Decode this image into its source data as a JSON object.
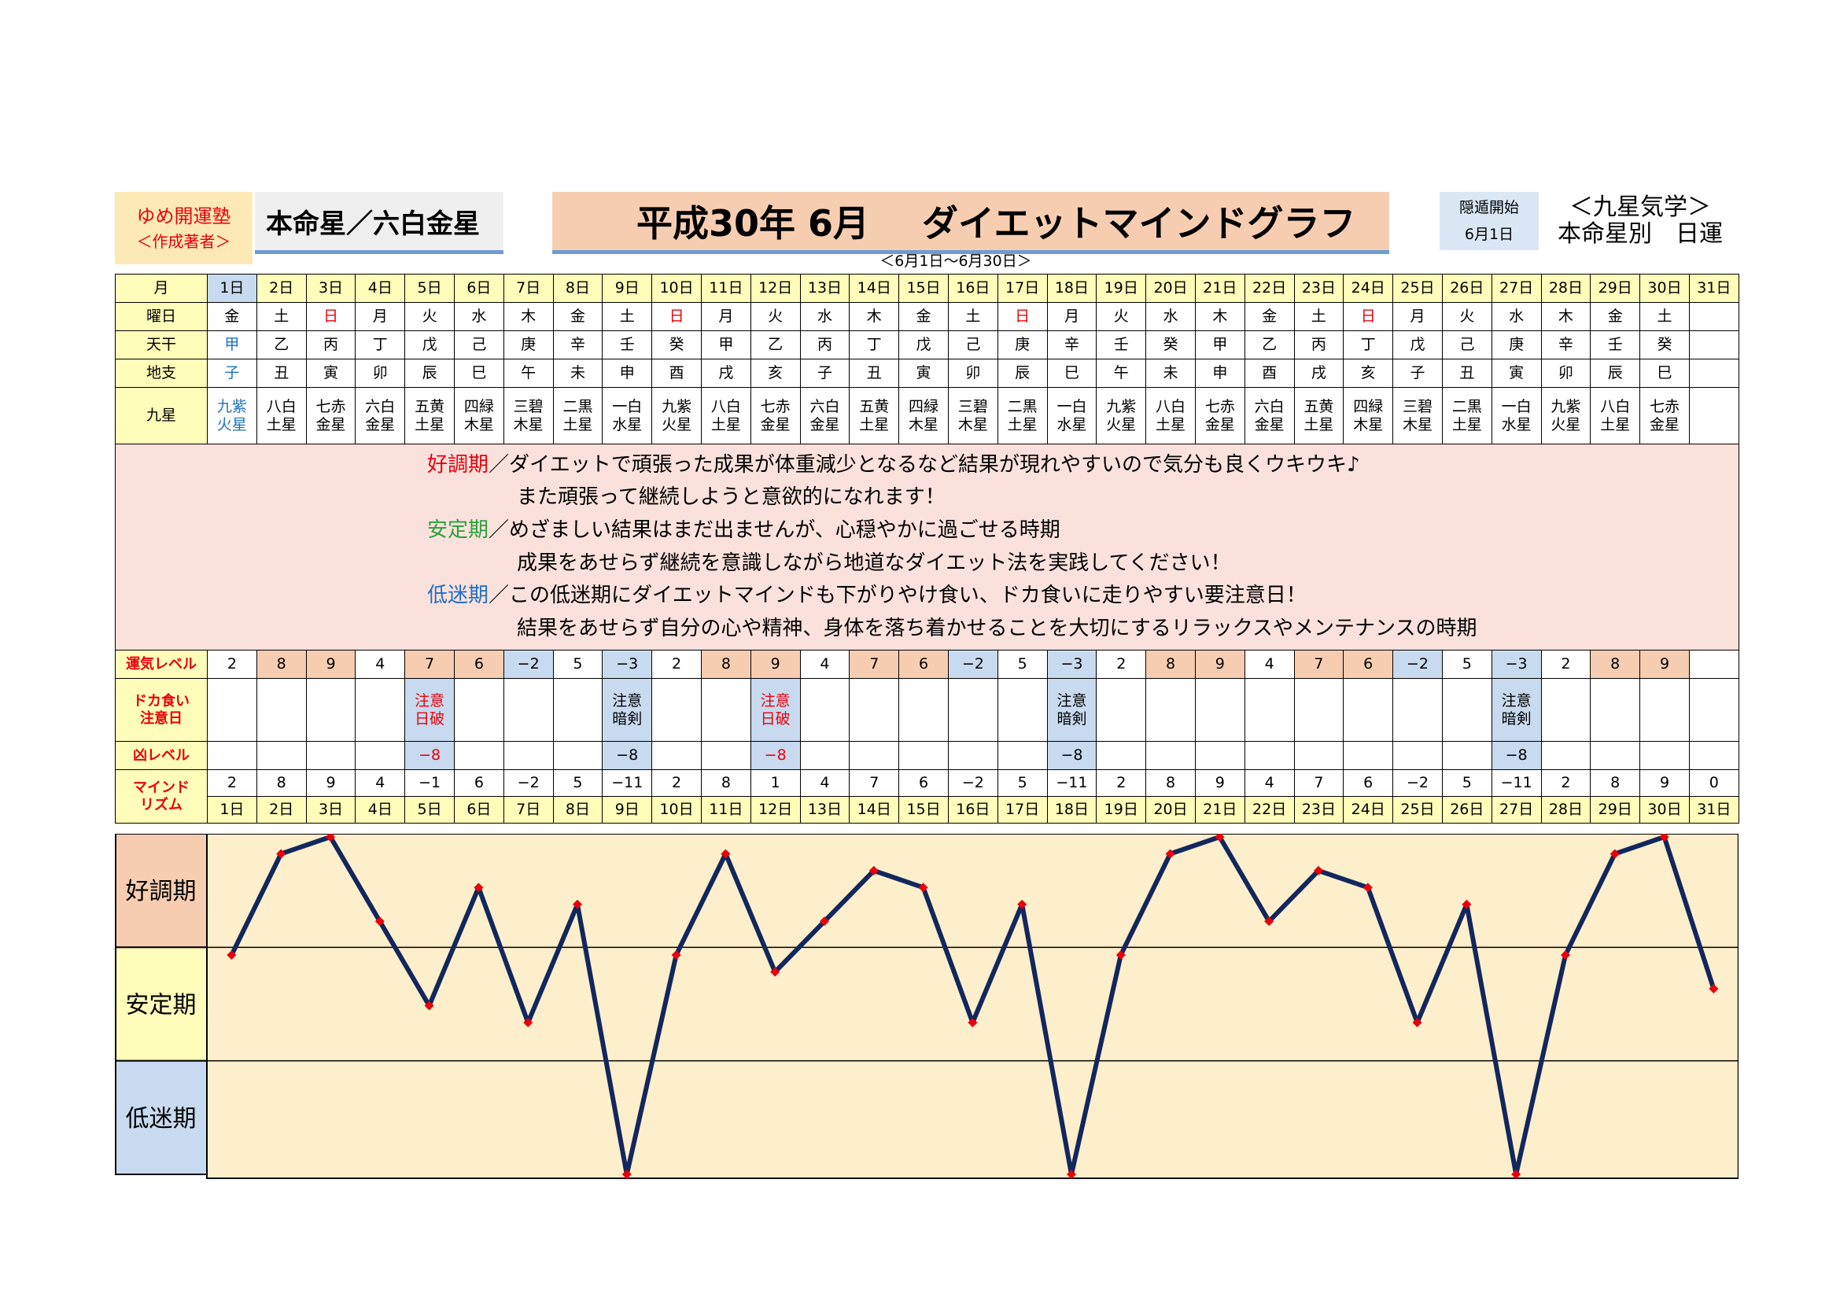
{
  "header": {
    "author_name": "ゆめ開運塾",
    "author_role": "＜作成著者＞",
    "honmei": "本命星／六白金星",
    "title_year": "平成30年 6月",
    "title_main": "ダイエットマインドグラフ",
    "period": "＜6月1日～6月30日＞",
    "inton_label": "隠遁開始",
    "inton_date": "6月1日",
    "kyusei_title": "＜九星気学＞",
    "kyusei_sub": "本命星別　日運"
  },
  "labels": {
    "month": "月",
    "weekday": "曜日",
    "tenkan": "天干",
    "chishi": "地支",
    "kyusei": "九星",
    "unki": "運気レベル",
    "doka_line1": "ドカ食い",
    "doka_line2": "注意日",
    "kyo": "凶レベル",
    "mind_line1": "マインド",
    "mind_line2": "リズム"
  },
  "days": [
    "1日",
    "2日",
    "3日",
    "4日",
    "5日",
    "6日",
    "7日",
    "8日",
    "9日",
    "10日",
    "11日",
    "12日",
    "13日",
    "14日",
    "15日",
    "16日",
    "17日",
    "18日",
    "19日",
    "20日",
    "21日",
    "22日",
    "23日",
    "24日",
    "25日",
    "26日",
    "27日",
    "28日",
    "29日",
    "30日",
    "31日"
  ],
  "weekdays": [
    "金",
    "土",
    "日",
    "月",
    "火",
    "水",
    "木",
    "金",
    "土",
    "日",
    "月",
    "火",
    "水",
    "木",
    "金",
    "土",
    "日",
    "月",
    "火",
    "水",
    "木",
    "金",
    "土",
    "日",
    "月",
    "火",
    "水",
    "木",
    "金",
    "土",
    ""
  ],
  "tenkan": [
    "甲",
    "乙",
    "丙",
    "丁",
    "戊",
    "己",
    "庚",
    "辛",
    "壬",
    "癸",
    "甲",
    "乙",
    "丙",
    "丁",
    "戊",
    "己",
    "庚",
    "辛",
    "壬",
    "癸",
    "甲",
    "乙",
    "丙",
    "丁",
    "戊",
    "己",
    "庚",
    "辛",
    "壬",
    "癸",
    ""
  ],
  "chishi": [
    "子",
    "丑",
    "寅",
    "卯",
    "辰",
    "巳",
    "午",
    "未",
    "申",
    "酉",
    "戌",
    "亥",
    "子",
    "丑",
    "寅",
    "卯",
    "辰",
    "巳",
    "午",
    "未",
    "申",
    "酉",
    "戌",
    "亥",
    "子",
    "丑",
    "寅",
    "卯",
    "辰",
    "巳",
    ""
  ],
  "kyusei_top": [
    "九紫",
    "八白",
    "七赤",
    "六白",
    "五黄",
    "四緑",
    "三碧",
    "二黒",
    "一白",
    "九紫",
    "八白",
    "七赤",
    "六白",
    "五黄",
    "四緑",
    "三碧",
    "二黒",
    "一白",
    "九紫",
    "八白",
    "七赤",
    "六白",
    "五黄",
    "四緑",
    "三碧",
    "二黒",
    "一白",
    "九紫",
    "八白",
    "七赤",
    ""
  ],
  "kyusei_bottom": [
    "火星",
    "土星",
    "金星",
    "金星",
    "土星",
    "木星",
    "木星",
    "土星",
    "水星",
    "火星",
    "土星",
    "金星",
    "金星",
    "土星",
    "木星",
    "木星",
    "土星",
    "水星",
    "火星",
    "土星",
    "金星",
    "金星",
    "土星",
    "木星",
    "木星",
    "土星",
    "水星",
    "火星",
    "土星",
    "金星",
    ""
  ],
  "description": {
    "good_label": "好調期",
    "good_text1": "／ダイエットで頑張った成果が体重減少となるなど結果が現れやすいので気分も良くウキウキ♪",
    "good_text2": "また頑張って継続しようと意欲的になれます！",
    "stable_label": "安定期",
    "stable_text1": "／めざましい結果はまだ出ませんが、心穏やかに過ごせる時期",
    "stable_text2": "成果をあせらず継続を意識しながら地道なダイエット法を実践してください！",
    "low_label": "低迷期",
    "low_text1": "／この低迷期にダイエットマインドも下がりやけ食い、ドカ食いに走りやすい要注意日！",
    "low_text2": "結果をあせらず自分の心や精神、身体を落ち着かせることを大切にするリラックスやメンテナンスの時期"
  },
  "unki": [
    "2",
    "8",
    "9",
    "4",
    "7",
    "6",
    "−2",
    "5",
    "−3",
    "2",
    "8",
    "9",
    "4",
    "7",
    "6",
    "−2",
    "5",
    "−3",
    "2",
    "8",
    "9",
    "4",
    "7",
    "6",
    "−2",
    "5",
    "−3",
    "2",
    "8",
    "9",
    ""
  ],
  "doka": [
    {
      "day": 5,
      "line1": "注意",
      "line2": "日破",
      "color": "red"
    },
    {
      "day": 9,
      "line1": "注意",
      "line2": "暗剣",
      "color": "black"
    },
    {
      "day": 12,
      "line1": "注意",
      "line2": "日破",
      "color": "red"
    },
    {
      "day": 18,
      "line1": "注意",
      "line2": "暗剣",
      "color": "black"
    },
    {
      "day": 27,
      "line1": "注意",
      "line2": "暗剣",
      "color": "black"
    }
  ],
  "kyo": [
    {
      "day": 5,
      "value": "−8",
      "color": "red"
    },
    {
      "day": 9,
      "value": "−8",
      "color": "black"
    },
    {
      "day": 12,
      "value": "−8",
      "color": "red"
    },
    {
      "day": 18,
      "value": "−8",
      "color": "black"
    },
    {
      "day": 27,
      "value": "−8",
      "color": "black"
    }
  ],
  "mind_labels": [
    "2",
    "8",
    "9",
    "4",
    "−1",
    "6",
    "−2",
    "5",
    "−11",
    "2",
    "8",
    "1",
    "4",
    "7",
    "6",
    "−2",
    "5",
    "−11",
    "2",
    "8",
    "9",
    "4",
    "7",
    "6",
    "−2",
    "5",
    "−11",
    "2",
    "8",
    "9",
    "0"
  ],
  "colors": {
    "good": "#f7cdb1",
    "bad": "#c8daef",
    "yellow": "#fffdb9",
    "chart_bg": "#fdefcb",
    "line": "#12275e",
    "marker": "#e8000b"
  },
  "chart_data": {
    "type": "line",
    "categories": [
      "1日",
      "2日",
      "3日",
      "4日",
      "5日",
      "6日",
      "7日",
      "8日",
      "9日",
      "10日",
      "11日",
      "12日",
      "13日",
      "14日",
      "15日",
      "16日",
      "17日",
      "18日",
      "19日",
      "20日",
      "21日",
      "22日",
      "23日",
      "24日",
      "25日",
      "26日",
      "27日",
      "28日",
      "29日",
      "30日",
      "31日"
    ],
    "series": [
      {
        "values": [
          2,
          8,
          9,
          4,
          -1,
          6,
          -2,
          5,
          -11,
          2,
          8,
          1,
          4,
          7,
          6,
          -2,
          5,
          -11,
          2,
          8,
          9,
          4,
          7,
          6,
          -2,
          5,
          -11,
          2,
          8,
          9,
          0
        ]
      }
    ],
    "ylim": [
      -11,
      9
    ],
    "bands": [
      {
        "label": "好調期",
        "color": "#f7cdb1",
        "range": [
          2,
          9
        ]
      },
      {
        "label": "安定期",
        "color": "#fffdb9",
        "range": [
          -4.5,
          2
        ]
      },
      {
        "label": "低迷期",
        "color": "#c8daef",
        "range": [
          -11,
          -4.5
        ]
      }
    ],
    "grid": false
  }
}
